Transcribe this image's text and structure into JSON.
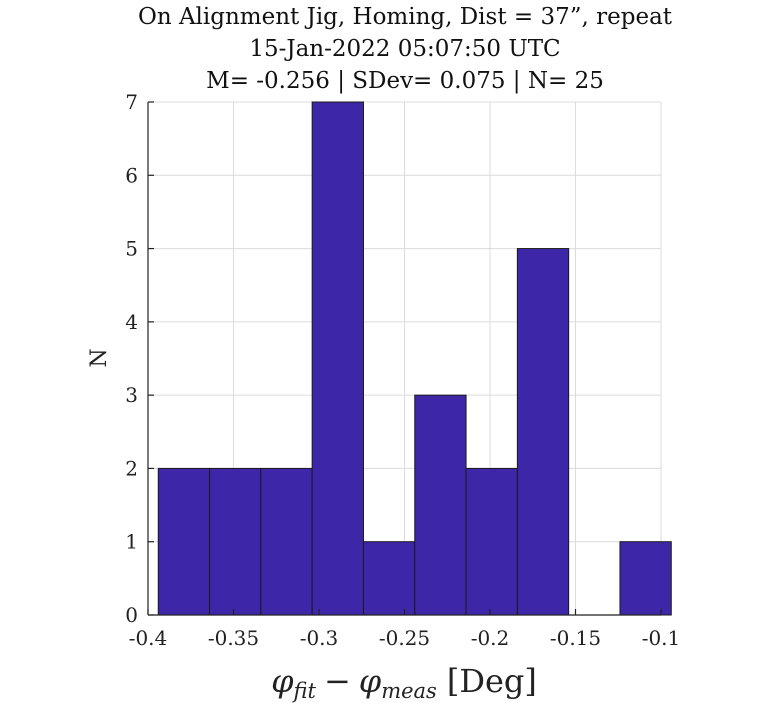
{
  "chart_data": {
    "type": "bar",
    "title": [
      "On Alignment Jig, Homing, Dist = 37”, repeat",
      "15-Jan-2022 05:07:50 UTC",
      "M= -0.256 | SDev= 0.075 | N= 25"
    ],
    "xlabel": "φfit − φmeas [Deg]",
    "xlabel_parts": {
      "phi": "φ",
      "sub1": "fit",
      "minus": "−",
      "sub2": "meas",
      "unit": "[Deg]"
    },
    "ylabel": "N",
    "xlim": [
      -0.4,
      -0.1
    ],
    "ylim": [
      0,
      7
    ],
    "xticks": [
      -0.4,
      -0.35,
      -0.3,
      -0.25,
      -0.2,
      -0.15,
      -0.1
    ],
    "xtick_labels": [
      "-0.4",
      "-0.35",
      "-0.3",
      "-0.25",
      "-0.2",
      "-0.15",
      "-0.1"
    ],
    "yticks": [
      0,
      1,
      2,
      3,
      4,
      5,
      6,
      7
    ],
    "ytick_labels": [
      "0",
      "1",
      "2",
      "3",
      "4",
      "5",
      "6",
      "7"
    ],
    "bin_edges": [
      -0.394,
      -0.364,
      -0.334,
      -0.304,
      -0.274,
      -0.244,
      -0.214,
      -0.184,
      -0.154,
      -0.124,
      -0.094
    ],
    "values": [
      2,
      2,
      2,
      7,
      1,
      3,
      2,
      5,
      0,
      1
    ],
    "grid": true,
    "colors": {
      "bar": "#3d27a8",
      "edge": "#1a1a1a",
      "grid": "#dcdcdc"
    }
  }
}
